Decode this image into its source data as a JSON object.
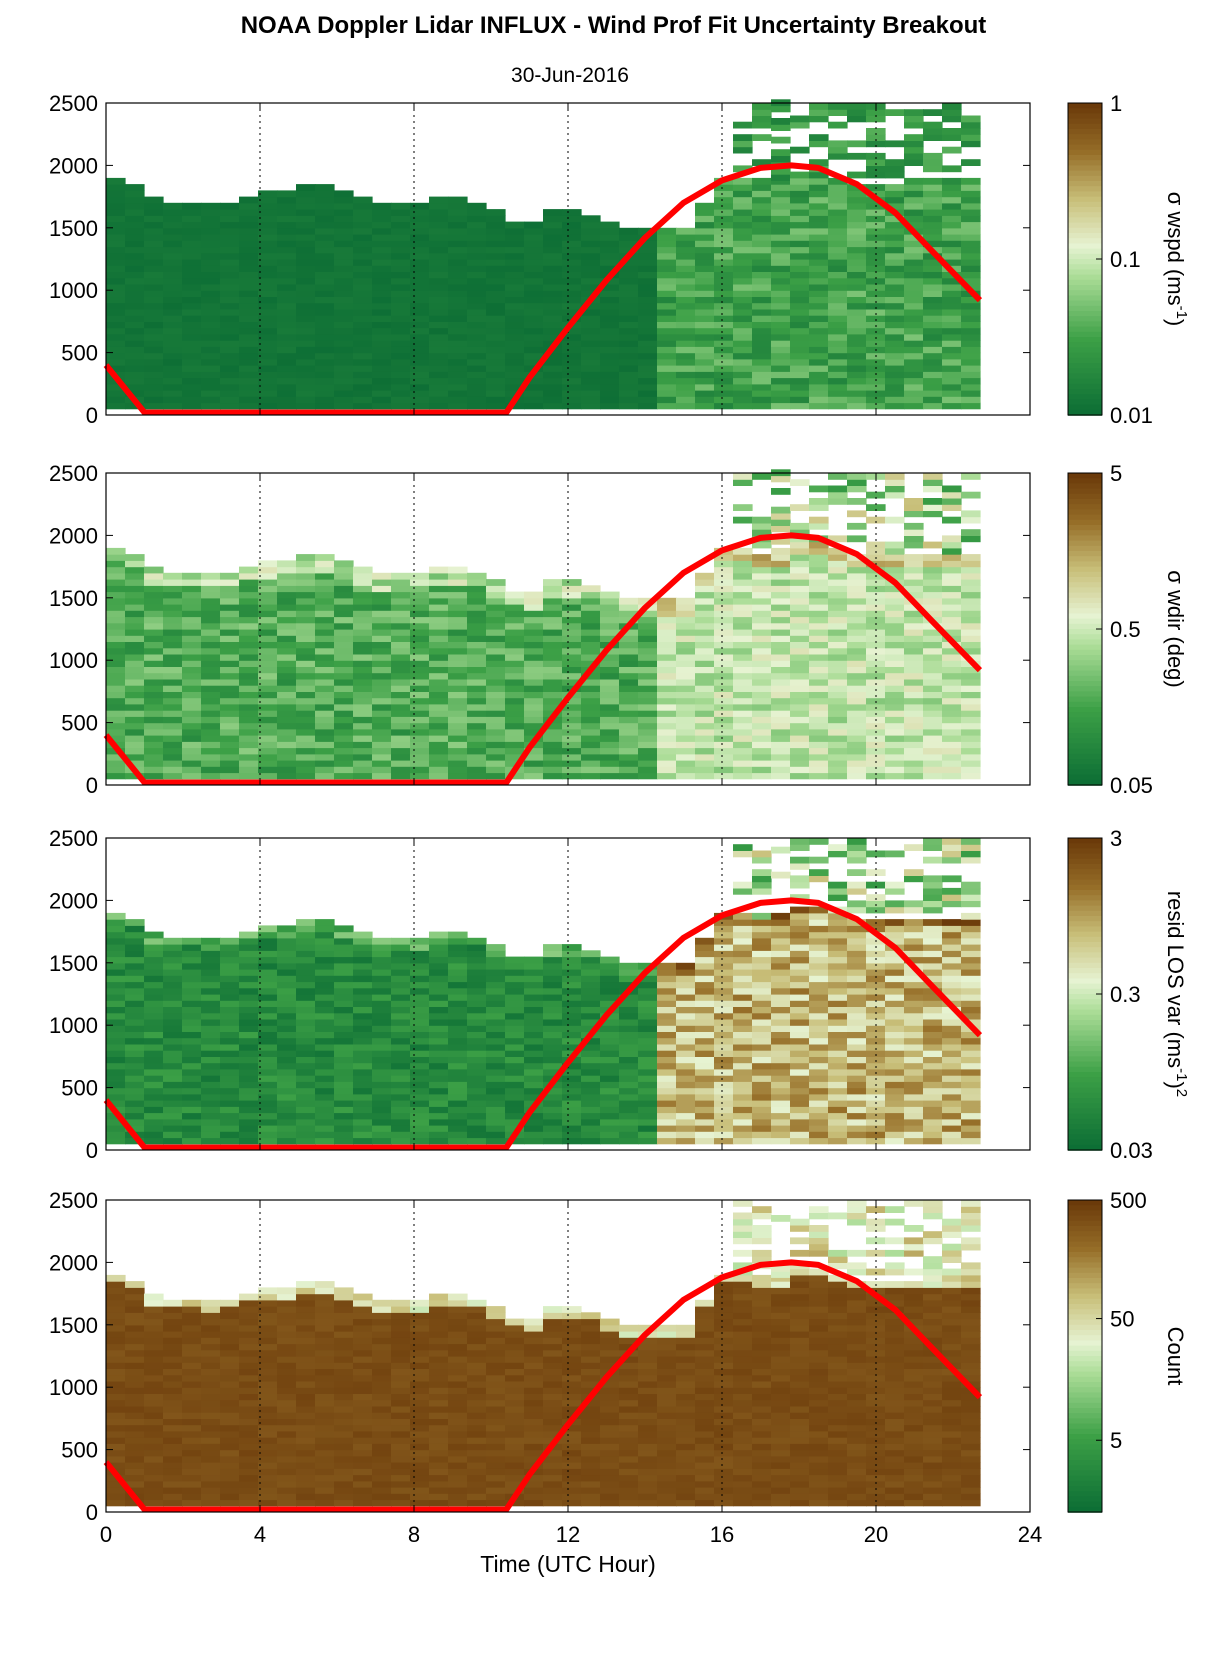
{
  "title": "NOAA Doppler Lidar INFLUX - Wind Prof Fit Uncertainty Breakout",
  "subtitle": "30-Jun-2016",
  "chart_data": [
    {
      "type": "heatmap",
      "xlabel": "",
      "ylabel": "",
      "colorbar_label": "σ wspd (ms",
      "colorbar_label_sup": "-1",
      "colorbar_label_tail": ")",
      "colorbar_ticks": [
        "1",
        "0.1",
        "0.01"
      ],
      "xlim": [
        0,
        24
      ],
      "ylim": [
        0,
        2500
      ],
      "x_ticks": [
        "0",
        "4",
        "8",
        "12",
        "16",
        "20",
        "24"
      ],
      "y_ticks": [
        "0",
        "500",
        "1000",
        "1500",
        "2000",
        "2500"
      ],
      "cloud_top_m": [
        1900,
        1850,
        1720,
        1700,
        1700,
        1680,
        1700,
        1750,
        1780,
        1790,
        1830,
        1820,
        1760,
        1720,
        1690,
        1660,
        1690,
        1710,
        1740,
        1700,
        1640,
        1550,
        1520,
        1620,
        1640,
        1600,
        1520,
        1480,
        1460,
        1460,
        1460,
        1700,
        1900,
        1900,
        1850,
        1880,
        1950,
        1950,
        1900,
        1850,
        1850,
        1850,
        1850,
        1850,
        1850,
        1850
      ]
    },
    {
      "type": "heatmap",
      "xlabel": "",
      "ylabel": "",
      "colorbar_label": "σ wdir (deg)",
      "colorbar_ticks": [
        "5",
        "0.5",
        "0.05"
      ],
      "xlim": [
        0,
        24
      ],
      "ylim": [
        0,
        2500
      ],
      "x_ticks": [
        "0",
        "4",
        "8",
        "12",
        "16",
        "20",
        "24"
      ],
      "y_ticks": [
        "0",
        "500",
        "1000",
        "1500",
        "2000",
        "2500"
      ]
    },
    {
      "type": "heatmap",
      "xlabel": "",
      "ylabel": "",
      "colorbar_label": "resid LOS var (ms",
      "colorbar_label_sup": "-1",
      "colorbar_label_tail": ")",
      "colorbar_label_sup2": "2",
      "colorbar_ticks": [
        "3",
        "0.3",
        "0.03"
      ],
      "xlim": [
        0,
        24
      ],
      "ylim": [
        0,
        2500
      ],
      "x_ticks": [
        "0",
        "4",
        "8",
        "12",
        "16",
        "20",
        "24"
      ],
      "y_ticks": [
        "0",
        "500",
        "1000",
        "1500",
        "2000",
        "2500"
      ]
    },
    {
      "type": "heatmap",
      "xlabel": "Time (UTC Hour)",
      "ylabel": "",
      "colorbar_label": "Count",
      "colorbar_ticks": [
        "500",
        "50",
        "5"
      ],
      "xlim": [
        0,
        24
      ],
      "ylim": [
        0,
        2500
      ],
      "x_ticks": [
        "0",
        "4",
        "8",
        "12",
        "16",
        "20",
        "24"
      ],
      "y_ticks": [
        "0",
        "500",
        "1000",
        "1500",
        "2000",
        "2500"
      ]
    }
  ],
  "overlay_curve": {
    "color": "#ff0000",
    "x": [
      0,
      1,
      10.4,
      11,
      12,
      13,
      14,
      15,
      16,
      17,
      17.8,
      18.5,
      19.5,
      20.5,
      21.5,
      22.7
    ],
    "y": [
      400,
      20,
      20,
      300,
      700,
      1080,
      1420,
      1700,
      1880,
      1980,
      2000,
      1980,
      1850,
      1620,
      1300,
      920
    ]
  },
  "colors": {
    "colormap_low": "#0a6b34",
    "colormap_mid": "#e6f3d2",
    "colormap_high": "#6b3a0a",
    "curve": "#ff0000"
  }
}
